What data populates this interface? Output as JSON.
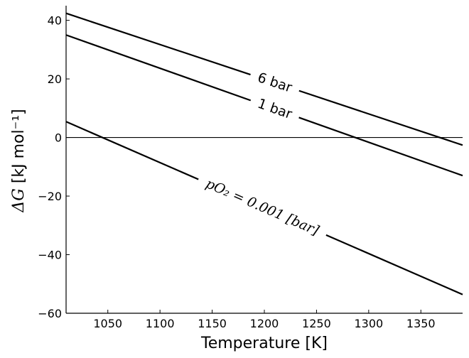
{
  "chart_data": {
    "type": "line",
    "xlabel": "Temperature [K]",
    "ylabel": "ΔG [kJ mol⁻¹]",
    "xlim": [
      1010,
      1390
    ],
    "ylim": [
      -60,
      45
    ],
    "xticks": [
      1050,
      1100,
      1150,
      1200,
      1250,
      1300,
      1350
    ],
    "yticks": [
      -60,
      -40,
      -20,
      0,
      20,
      40
    ],
    "xtick_labels": [
      "1050",
      "1100",
      "1150",
      "1200",
      "1250",
      "1300",
      "1350"
    ],
    "ytick_labels": [
      "−60",
      "−40",
      "−20",
      "0",
      "20",
      "40"
    ],
    "grid": false,
    "reference_line": {
      "y": 0
    },
    "series": [
      {
        "label": "6 bar",
        "color": "#000000",
        "x": [
          1010,
          1390
        ],
        "y": [
          42.4,
          -2.6
        ],
        "label_at_x": 1210
      },
      {
        "label": "1 bar",
        "color": "#000000",
        "x": [
          1010,
          1390
        ],
        "y": [
          35.0,
          -13.0
        ],
        "label_at_x": 1210
      },
      {
        "label_prefix": "pO₂",
        "label": "= 0.001 [bar]",
        "color": "#000000",
        "x": [
          1010,
          1390
        ],
        "y": [
          5.4,
          -53.6
        ],
        "label_at_x": 1198
      }
    ]
  }
}
